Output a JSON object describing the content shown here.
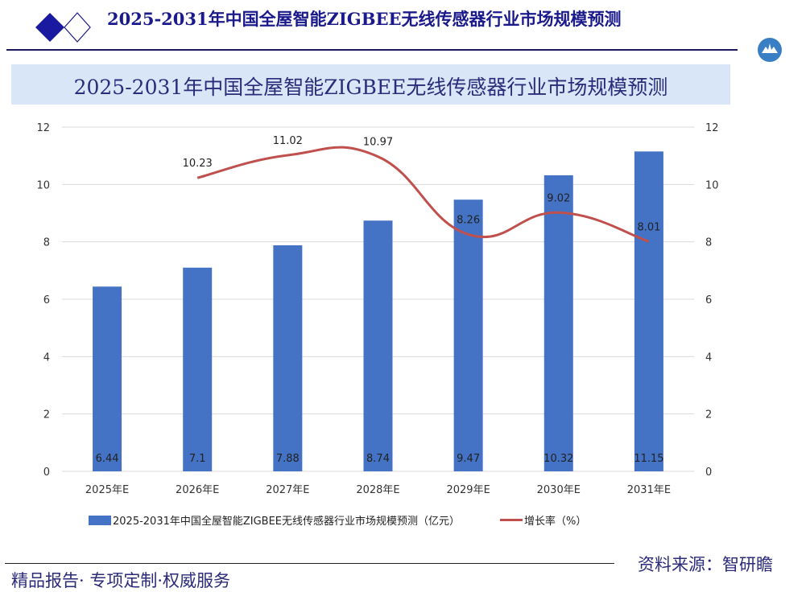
{
  "header": {
    "title": "2025-2031年中国全屋智能ZIGBEE无线传感器行业市场规模预测"
  },
  "footer": {
    "slogan": "精品报告· 专项定制·权威服务",
    "source": "资料来源：智研瞻"
  },
  "chart_data": {
    "type": "bar+line",
    "title": "2025-2031年中国全屋智能ZIGBEE无线传感器行业市场规模预测",
    "categories": [
      "2025年E",
      "2026年E",
      "2027年E",
      "2028年E",
      "2029年E",
      "2030年E",
      "2031年E"
    ],
    "series": [
      {
        "name": "2025-2031年中国全屋智能ZIGBEE无线传感器行业市场规模预测（亿元）",
        "type": "bar",
        "axis": "left",
        "color": "#4472c4",
        "values": [
          6.44,
          7.1,
          7.88,
          8.74,
          9.47,
          10.32,
          11.15
        ],
        "labels": [
          "6.44",
          "7.1",
          "7.88",
          "8.74",
          "9.47",
          "10.32",
          "11.15"
        ]
      },
      {
        "name": "增长率（%）",
        "type": "line",
        "axis": "right",
        "color": "#c0504d",
        "smooth": true,
        "values": [
          null,
          10.23,
          11.02,
          10.97,
          8.26,
          9.02,
          8.01
        ],
        "labels": [
          "",
          "10.23",
          "11.02",
          "10.97",
          "8.26",
          "9.02",
          "8.01"
        ]
      }
    ],
    "ylim": [
      0,
      12
    ],
    "y2lim": [
      0,
      12
    ],
    "yticks": [
      "0",
      "2",
      "4",
      "6",
      "8",
      "10",
      "12"
    ],
    "grid": true,
    "legend": "bottom"
  }
}
